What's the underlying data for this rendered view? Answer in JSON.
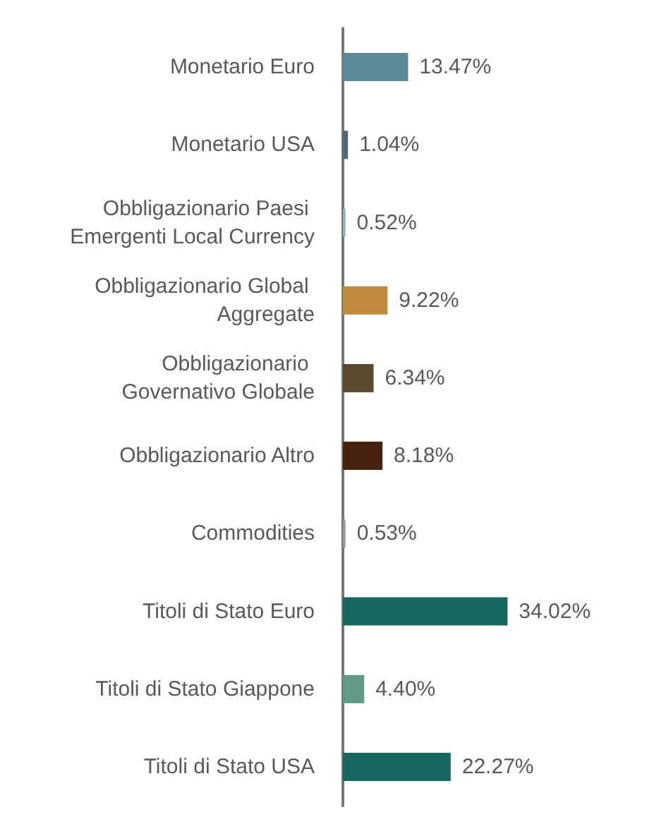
{
  "chart_data": {
    "type": "bar",
    "orientation": "horizontal",
    "categories": [
      "Monetario Euro",
      "Monetario USA",
      "Obbligazionario Paesi Emergenti Local Currency",
      "Obbligazionario Global Aggregate",
      "Obbligazionario Governativo Globale",
      "Obbligazionario Altro",
      "Commodities",
      "Titoli di Stato Euro",
      "Titoli di Stato Giappone",
      "Titoli di Stato USA"
    ],
    "values": [
      13.47,
      1.04,
      0.52,
      9.22,
      6.34,
      8.18,
      0.53,
      34.02,
      4.4,
      22.27
    ],
    "value_labels": [
      "13.47%",
      "1.04%",
      "0.52%",
      "9.22%",
      "6.34%",
      "8.18%",
      "0.53%",
      "34.02%",
      "4.40%",
      "22.27%"
    ],
    "colors": [
      "#5b8a97",
      "#4d6779",
      "#8fb3bd",
      "#c08a3c",
      "#5b4a2e",
      "#46230f",
      "#9a9a9a",
      "#14685e",
      "#5e9a84",
      "#14685e"
    ]
  }
}
